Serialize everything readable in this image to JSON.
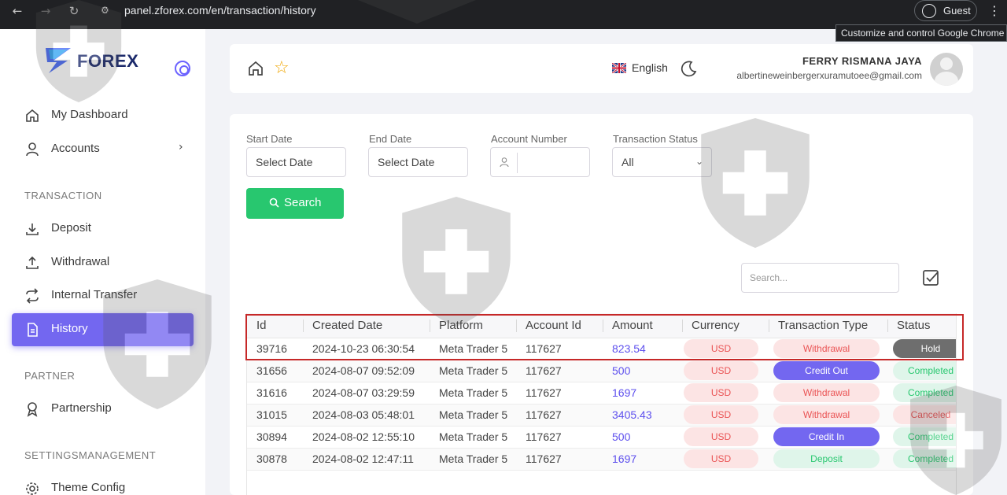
{
  "browser": {
    "url": "panel.zforex.com/en/transaction/history",
    "profile": "Guest",
    "tooltip": "Customize and control Google Chrome"
  },
  "sidebar": {
    "logo": "FOREX",
    "items": [
      {
        "label": "My Dashboard",
        "icon": "home-icon"
      },
      {
        "label": "Accounts",
        "icon": "user-icon"
      }
    ],
    "sections": {
      "transaction": "TRANSACTION",
      "partner": "PARTNER",
      "settings": "SETTINGSMANAGEMENT"
    },
    "transaction_items": [
      {
        "label": "Deposit",
        "icon": "download-icon"
      },
      {
        "label": "Withdrawal",
        "icon": "upload-icon"
      },
      {
        "label": "Internal Transfer",
        "icon": "transfer-icon"
      },
      {
        "label": "History",
        "icon": "document-icon"
      }
    ],
    "partner_items": [
      {
        "label": "Partnership",
        "icon": "award-icon"
      }
    ],
    "settings_items": [
      {
        "label": "Theme Config",
        "icon": "gear-icon"
      }
    ]
  },
  "header": {
    "language": "English",
    "user_name": "FERRY RISMANA JAYA",
    "user_email": "albertineweinbergerxuramutoee@gmail.com"
  },
  "filters": {
    "start_date_label": "Start Date",
    "start_date_value": "Select Date",
    "end_date_label": "End Date",
    "end_date_value": "Select Date",
    "account_label": "Account Number",
    "account_value": "",
    "status_label": "Transaction Status",
    "status_value": "All",
    "search_button": "Search",
    "table_search_placeholder": "Search..."
  },
  "table": {
    "headers": [
      "Id",
      "Created Date",
      "Platform",
      "Account Id",
      "Amount",
      "Currency",
      "Transaction Type",
      "Status"
    ],
    "rows": [
      {
        "id": "39716",
        "date": "2024-10-23 06:30:54",
        "platform": "Meta Trader 5",
        "account": "117627",
        "amount": "823.54",
        "currency": "USD",
        "type": "Withdrawal",
        "type_style": "danger",
        "status": "Hold",
        "status_style": "hold"
      },
      {
        "id": "31656",
        "date": "2024-08-07 09:52:09",
        "platform": "Meta Trader 5",
        "account": "117627",
        "amount": "500",
        "currency": "USD",
        "type": "Credit Out",
        "type_style": "primary",
        "status": "Completed",
        "status_style": "completed"
      },
      {
        "id": "31616",
        "date": "2024-08-07 03:29:59",
        "platform": "Meta Trader 5",
        "account": "117627",
        "amount": "1697",
        "currency": "USD",
        "type": "Withdrawal",
        "type_style": "danger",
        "status": "Completed",
        "status_style": "completed"
      },
      {
        "id": "31015",
        "date": "2024-08-03 05:48:01",
        "platform": "Meta Trader 5",
        "account": "117627",
        "amount": "3405.43",
        "currency": "USD",
        "type": "Withdrawal",
        "type_style": "danger",
        "status": "Canceled",
        "status_style": "canceled"
      },
      {
        "id": "30894",
        "date": "2024-08-02 12:55:10",
        "platform": "Meta Trader 5",
        "account": "117627",
        "amount": "500",
        "currency": "USD",
        "type": "Credit In",
        "type_style": "primary",
        "status": "Completed",
        "status_style": "completed"
      },
      {
        "id": "30878",
        "date": "2024-08-02 12:47:11",
        "platform": "Meta Trader 5",
        "account": "117627",
        "amount": "1697",
        "currency": "USD",
        "type": "Deposit",
        "type_style": "success",
        "status": "Completed",
        "status_style": "completed"
      }
    ]
  },
  "colors": {
    "accent": "#7367f0",
    "success": "#28c76f",
    "danger": "#ea5455",
    "highlight": "#c62828"
  }
}
